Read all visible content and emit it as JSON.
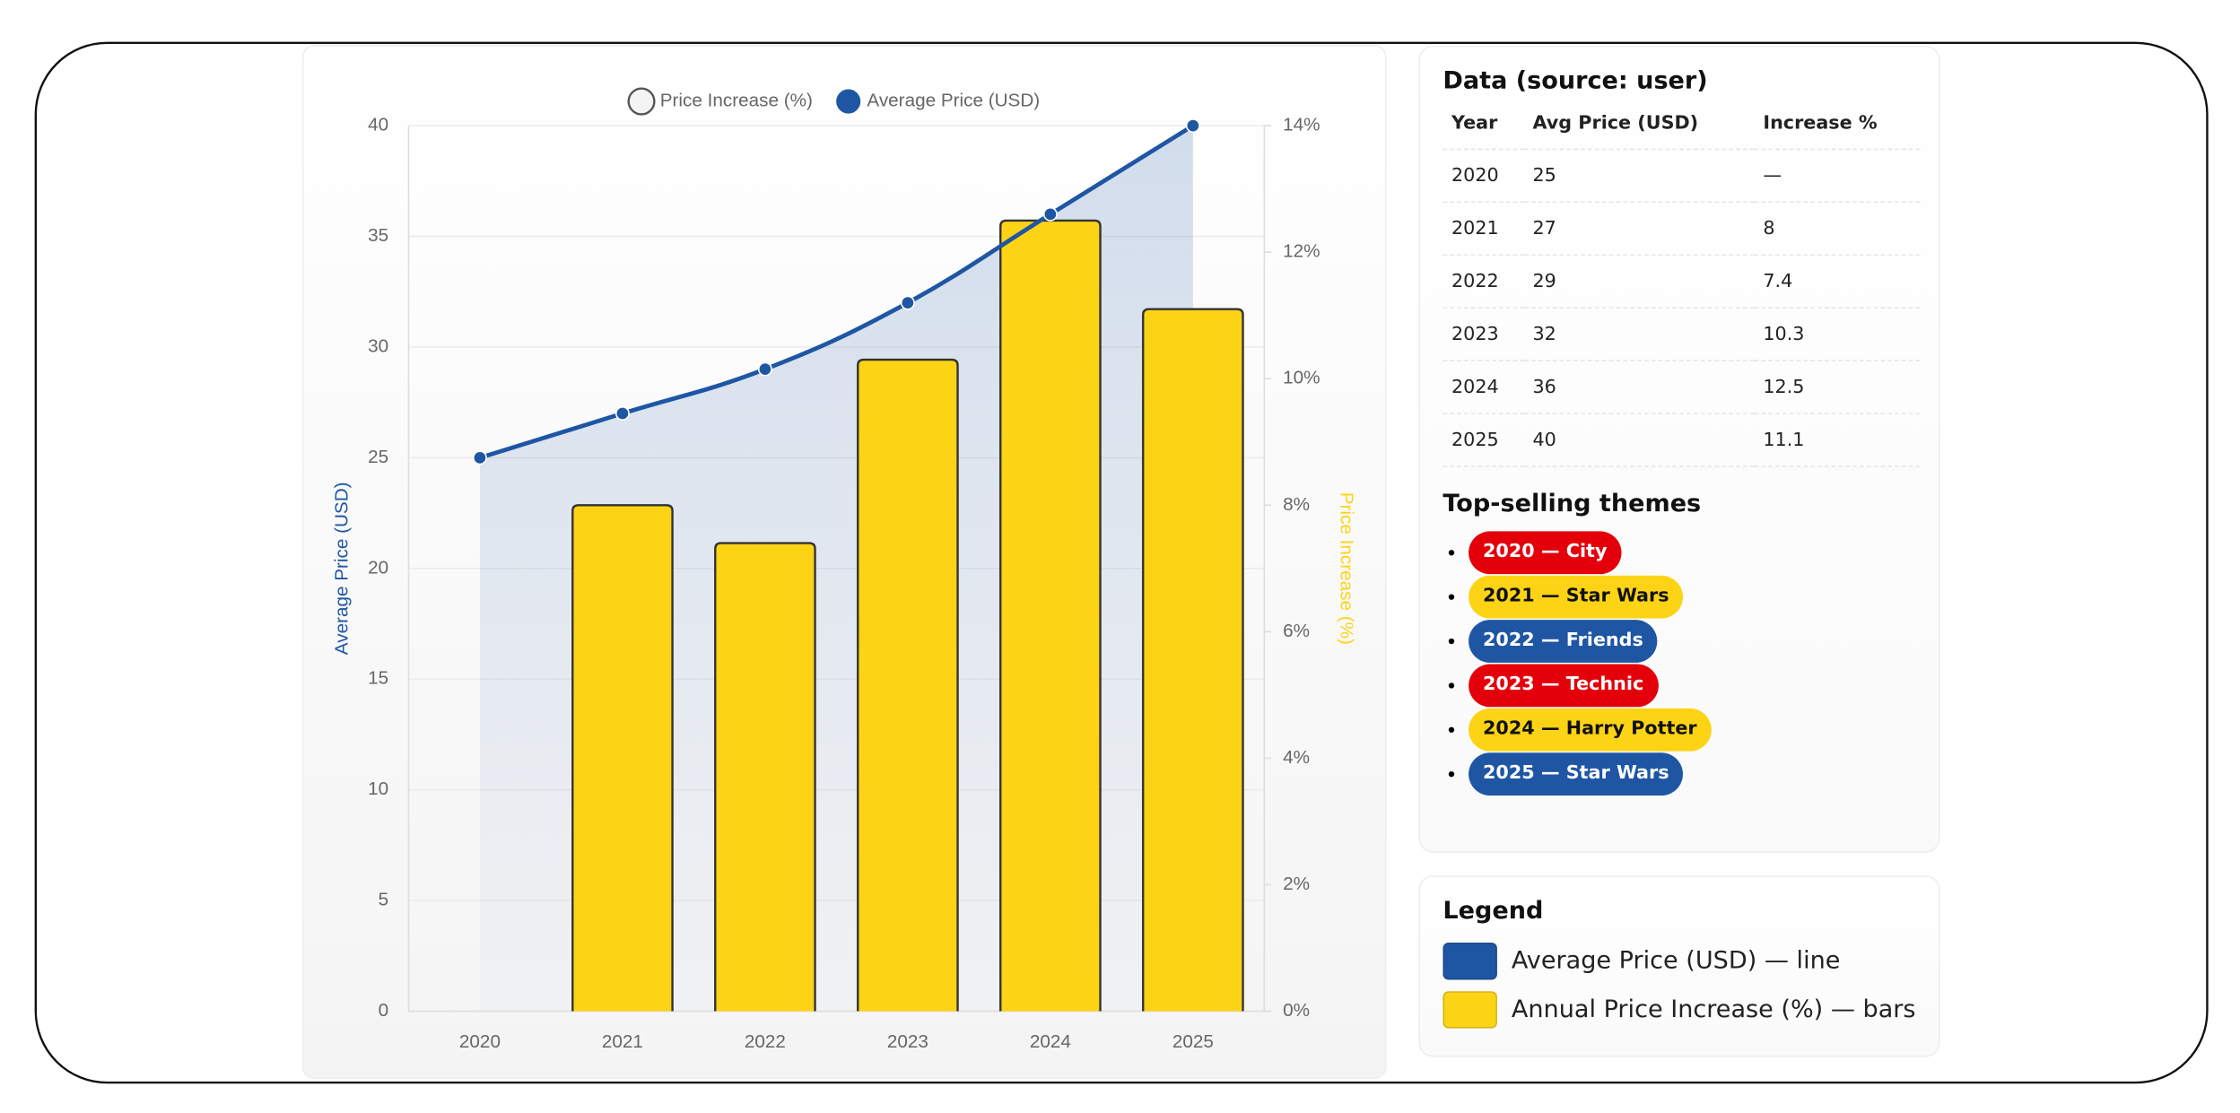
{
  "chart_data": {
    "type": "combo",
    "ylabel": "Average Price (USD)",
    "y2label": "Price Increase (%)",
    "categories": [
      "2020",
      "2021",
      "2022",
      "2023",
      "2024",
      "2025"
    ],
    "series": [
      {
        "name": "Price Increase (%)",
        "type": "bar",
        "axis": "y2",
        "color": "#fdd316",
        "values": [
          null,
          8,
          7.4,
          10.3,
          12.5,
          11.1
        ]
      },
      {
        "name": "Average Price (USD)",
        "type": "line",
        "color": "#1f56a4",
        "values": [
          25,
          27,
          29,
          32,
          36,
          40
        ]
      }
    ],
    "ylim": [
      0,
      40
    ],
    "yticks": [
      0,
      5,
      10,
      15,
      20,
      25,
      30,
      35,
      40
    ],
    "y2lim": [
      0,
      14
    ],
    "y2ticks": [
      {
        "value": 0,
        "label": "0%"
      },
      {
        "value": 2,
        "label": "2%"
      },
      {
        "value": 4,
        "label": "4%"
      },
      {
        "value": 6,
        "label": "6%"
      },
      {
        "value": 8,
        "label": "8%"
      },
      {
        "value": 10,
        "label": "10%"
      },
      {
        "value": 12,
        "label": "12%"
      },
      {
        "value": 14,
        "label": "14%"
      }
    ],
    "grid": true,
    "legend": "top"
  },
  "table": {
    "title": "Data (source: user)",
    "columns": [
      "Year",
      "Avg Price (USD)",
      "Increase %"
    ],
    "rows": [
      [
        "2020",
        "25",
        "—"
      ],
      [
        "2021",
        "27",
        "8"
      ],
      [
        "2022",
        "29",
        "7.4"
      ],
      [
        "2023",
        "32",
        "10.3"
      ],
      [
        "2024",
        "36",
        "12.5"
      ],
      [
        "2025",
        "40",
        "11.1"
      ]
    ]
  },
  "themes": {
    "title": "Top-selling themes",
    "items": [
      {
        "label": "2020 — City",
        "color": "#e3000b"
      },
      {
        "label": "2021 — Star Wars",
        "color": "#fdd316"
      },
      {
        "label": "2022 — Friends",
        "color": "#1f56a4"
      },
      {
        "label": "2023 — Technic",
        "color": "#e3000b"
      },
      {
        "label": "2024 — Harry Potter",
        "color": "#fdd316"
      },
      {
        "label": "2025 — Star Wars",
        "color": "#1f56a4"
      }
    ]
  },
  "legend": {
    "title": "Legend",
    "items": [
      {
        "label": "Average Price (USD) — line",
        "color": "#1f56a4"
      },
      {
        "label": "Annual Price Increase (%) — bars",
        "color": "#fdd316"
      }
    ]
  }
}
